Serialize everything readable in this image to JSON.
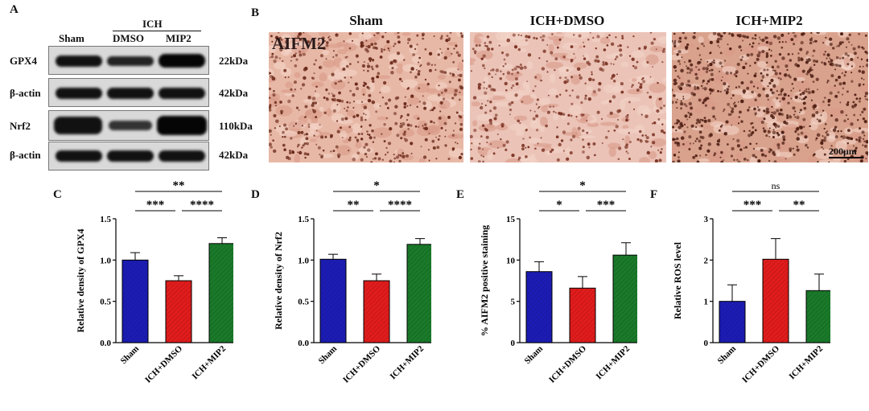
{
  "panels": {
    "A": "A",
    "B": "B",
    "C": "C",
    "D": "D",
    "E": "E",
    "F": "F"
  },
  "blot": {
    "group_label": "ICH",
    "lanes": [
      "Sham",
      "DMSO",
      "MIP2"
    ],
    "rows": [
      {
        "protein": "GPX4",
        "size": "22kDa"
      },
      {
        "protein": "β-actin",
        "size": "42kDa"
      },
      {
        "protein": "Nrf2",
        "size": "110kDa"
      },
      {
        "protein": "β-actin",
        "size": "42kDa"
      }
    ]
  },
  "ihc": {
    "marker": "AIFM2",
    "groups": [
      "Sham",
      "ICH+DMSO",
      "ICH+MIP2"
    ],
    "scale_bar": "200μm"
  },
  "colors": {
    "sham": "#1c1cb5",
    "dmso": "#e11c1c",
    "mip2": "#1a7a2a"
  },
  "chart_data": [
    {
      "type": "bar",
      "panel": "C",
      "categories": [
        "Sham",
        "ICH+DMSO",
        "ICH+MIP2"
      ],
      "values": [
        1.0,
        0.75,
        1.2
      ],
      "errors": [
        0.09,
        0.06,
        0.07
      ],
      "ylabel": "Relative density of GPX4",
      "ylim": [
        0,
        1.5
      ],
      "yticks": [
        "0.0",
        "0.5",
        "1.0",
        "1.5"
      ],
      "significance": [
        {
          "from": 0,
          "to": 2,
          "label": "**"
        },
        {
          "from": 0,
          "to": 1,
          "label": "***"
        },
        {
          "from": 1,
          "to": 2,
          "label": "****"
        }
      ]
    },
    {
      "type": "bar",
      "panel": "D",
      "categories": [
        "Sham",
        "ICH+DMSO",
        "ICH+MIP2"
      ],
      "values": [
        1.01,
        0.75,
        1.19
      ],
      "errors": [
        0.06,
        0.08,
        0.07
      ],
      "ylabel": "Relative density of Nrf2",
      "ylim": [
        0,
        1.5
      ],
      "yticks": [
        "0.0",
        "0.5",
        "1.0",
        "1.5"
      ],
      "significance": [
        {
          "from": 0,
          "to": 2,
          "label": "*"
        },
        {
          "from": 0,
          "to": 1,
          "label": "**"
        },
        {
          "from": 1,
          "to": 2,
          "label": "****"
        }
      ]
    },
    {
      "type": "bar",
      "panel": "E",
      "categories": [
        "Sham",
        "ICH+DMSO",
        "ICH+MIP2"
      ],
      "values": [
        8.6,
        6.6,
        10.6
      ],
      "errors": [
        1.2,
        1.4,
        1.5
      ],
      "ylabel": "% AIFM2 positive staining",
      "ylim": [
        0,
        15
      ],
      "yticks": [
        "0",
        "5",
        "10",
        "15"
      ],
      "significance": [
        {
          "from": 0,
          "to": 2,
          "label": "*"
        },
        {
          "from": 0,
          "to": 1,
          "label": "*"
        },
        {
          "from": 1,
          "to": 2,
          "label": "***"
        }
      ]
    },
    {
      "type": "bar",
      "panel": "F",
      "categories": [
        "Sham",
        "ICH+DMSO",
        "ICH+MIP2"
      ],
      "values": [
        1.0,
        2.02,
        1.26
      ],
      "errors": [
        0.4,
        0.5,
        0.4
      ],
      "ylabel": "Relative ROS level",
      "ylim": [
        0,
        3
      ],
      "yticks": [
        "0",
        "1",
        "2",
        "3"
      ],
      "significance": [
        {
          "from": 0,
          "to": 2,
          "label": "ns"
        },
        {
          "from": 0,
          "to": 1,
          "label": "***"
        },
        {
          "from": 1,
          "to": 2,
          "label": "**"
        }
      ]
    }
  ]
}
